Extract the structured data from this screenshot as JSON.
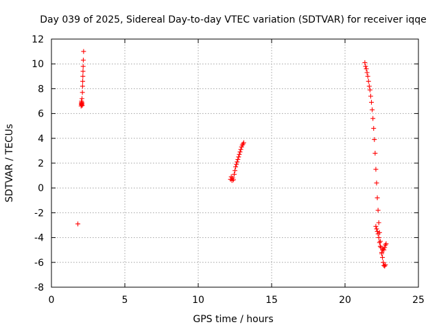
{
  "chart_data": {
    "type": "scatter",
    "title": "Day 039 of 2025, Sidereal Day-to-day VTEC variation (SDTVAR) for receiver iqqe",
    "xlabel": "GPS time / hours",
    "ylabel": "SDTVAR / TECUs",
    "xlim": [
      0,
      25
    ],
    "ylim": [
      -8,
      12
    ],
    "xticks": [
      0,
      5,
      10,
      15,
      20,
      25
    ],
    "yticks": [
      -8,
      -6,
      -4,
      -2,
      0,
      2,
      4,
      6,
      8,
      10,
      12
    ],
    "grid": true,
    "marker": "+",
    "color": "#ff0000",
    "series": [
      {
        "name": "SDTVAR",
        "points": [
          [
            1.8,
            -2.9
          ],
          [
            2.02,
            6.6
          ],
          [
            2.03,
            6.75
          ],
          [
            2.04,
            6.85
          ],
          [
            2.05,
            7.0
          ],
          [
            2.06,
            6.7
          ],
          [
            2.07,
            6.9
          ],
          [
            2.08,
            7.2
          ],
          [
            2.09,
            6.8
          ],
          [
            2.1,
            6.65
          ],
          [
            2.11,
            7.7
          ],
          [
            2.12,
            8.2
          ],
          [
            2.13,
            8.6
          ],
          [
            2.14,
            9.0
          ],
          [
            2.15,
            9.4
          ],
          [
            2.16,
            9.8
          ],
          [
            2.17,
            10.3
          ],
          [
            2.19,
            11.0
          ],
          [
            12.2,
            0.7
          ],
          [
            12.25,
            0.9
          ],
          [
            12.3,
            0.6
          ],
          [
            12.35,
            0.8
          ],
          [
            12.4,
            0.65
          ],
          [
            12.45,
            1.1
          ],
          [
            12.5,
            1.4
          ],
          [
            12.55,
            1.7
          ],
          [
            12.6,
            1.9
          ],
          [
            12.65,
            2.1
          ],
          [
            12.7,
            2.3
          ],
          [
            12.75,
            2.5
          ],
          [
            12.8,
            2.7
          ],
          [
            12.85,
            2.9
          ],
          [
            12.9,
            3.1
          ],
          [
            12.95,
            3.3
          ],
          [
            13.0,
            3.45
          ],
          [
            13.05,
            3.55
          ],
          [
            13.1,
            3.65
          ],
          [
            21.35,
            10.1
          ],
          [
            21.4,
            9.8
          ],
          [
            21.45,
            9.6
          ],
          [
            21.5,
            9.3
          ],
          [
            21.55,
            9.0
          ],
          [
            21.6,
            8.6
          ],
          [
            21.65,
            8.2
          ],
          [
            21.7,
            7.9
          ],
          [
            21.75,
            7.4
          ],
          [
            21.8,
            6.9
          ],
          [
            21.85,
            6.3
          ],
          [
            21.9,
            5.6
          ],
          [
            21.95,
            4.8
          ],
          [
            22.0,
            3.9
          ],
          [
            22.05,
            2.8
          ],
          [
            22.1,
            1.5
          ],
          [
            22.15,
            0.4
          ],
          [
            22.2,
            -0.8
          ],
          [
            22.25,
            -1.8
          ],
          [
            22.3,
            -2.8
          ],
          [
            22.35,
            -3.6
          ],
          [
            22.4,
            -4.3
          ],
          [
            22.45,
            -4.8
          ],
          [
            22.5,
            -5.2
          ],
          [
            22.55,
            -5.6
          ],
          [
            22.6,
            -6.0
          ],
          [
            22.65,
            -6.25
          ],
          [
            22.7,
            -6.3
          ],
          [
            22.75,
            -6.2
          ],
          [
            22.1,
            -3.1
          ],
          [
            22.15,
            -3.3
          ],
          [
            22.2,
            -3.5
          ],
          [
            22.25,
            -3.7
          ],
          [
            22.3,
            -4.0
          ],
          [
            22.35,
            -4.4
          ],
          [
            22.4,
            -4.7
          ],
          [
            22.5,
            -5.3
          ],
          [
            22.55,
            -5.0
          ],
          [
            22.6,
            -4.9
          ],
          [
            22.65,
            -5.0
          ],
          [
            22.7,
            -4.8
          ],
          [
            22.75,
            -4.6
          ],
          [
            22.8,
            -4.5
          ]
        ]
      }
    ]
  }
}
